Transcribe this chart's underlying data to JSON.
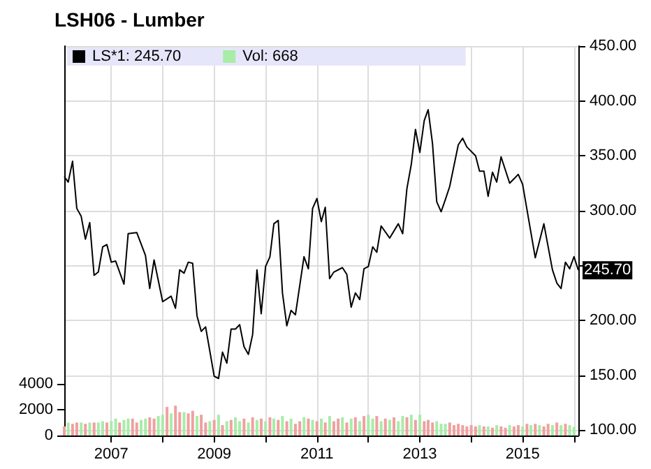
{
  "chart_data": {
    "type": "line",
    "title": "LSH06 - Lumber",
    "xlim": [
      "2006-02",
      "2016-02"
    ],
    "xticks": [
      {
        "value": "2007",
        "label": "2007"
      },
      {
        "value": "2008",
        "label": null
      },
      {
        "value": "2009",
        "label": "2009"
      },
      {
        "value": "2010",
        "label": null
      },
      {
        "value": "2011",
        "label": "2011"
      },
      {
        "value": "2012",
        "label": null
      },
      {
        "value": "2013",
        "label": "2013"
      },
      {
        "value": "2014",
        "label": null
      },
      {
        "value": "2015",
        "label": "2015"
      },
      {
        "value": "2016",
        "label": null
      }
    ],
    "ylim": [
      95,
      450
    ],
    "yticks": [
      {
        "value": 100,
        "label": "100.00"
      },
      {
        "value": 150,
        "label": "150.00"
      },
      {
        "value": 200,
        "label": "200.00"
      },
      {
        "value": 250,
        "label": null
      },
      {
        "value": 300,
        "label": "300.00"
      },
      {
        "value": 350,
        "label": "350.00"
      },
      {
        "value": 400,
        "label": "400.00"
      },
      {
        "value": 450,
        "label": "450.00"
      }
    ],
    "y2lim": [
      0,
      30000
    ],
    "y2ticks": [
      0,
      2000,
      4000
    ],
    "grid": true,
    "legend": "top left",
    "marker": "none",
    "annotations": [
      {
        "text": "245.70",
        "x": "2016-02",
        "y": 245.7
      }
    ],
    "series": [
      {
        "name": "LS*1: 245.70",
        "color": "#000000",
        "x": [
          "2006-02",
          "2006-03",
          "2006-04",
          "2006-05",
          "2006-06",
          "2006-07",
          "2006-08",
          "2006-09",
          "2006-10",
          "2006-11",
          "2006-12",
          "2007-01",
          "2007-02",
          "2007-04",
          "2007-05",
          "2007-07",
          "2007-09",
          "2007-10",
          "2007-11",
          "2008-01",
          "2008-03",
          "2008-04",
          "2008-05",
          "2008-06",
          "2008-07",
          "2008-08",
          "2008-09",
          "2008-10",
          "2008-11",
          "2008-12",
          "2009-01",
          "2009-02",
          "2009-03",
          "2009-04",
          "2009-05",
          "2009-06",
          "2009-07",
          "2009-08",
          "2009-09",
          "2009-10",
          "2009-11",
          "2009-12",
          "2010-01",
          "2010-02",
          "2010-03",
          "2010-04",
          "2010-05",
          "2010-06",
          "2010-07",
          "2010-08",
          "2010-10",
          "2010-11",
          "2010-12",
          "2011-01",
          "2011-02",
          "2011-03",
          "2011-04",
          "2011-05",
          "2011-07",
          "2011-08",
          "2011-09",
          "2011-10",
          "2011-11",
          "2011-12",
          "2012-01",
          "2012-02",
          "2012-03",
          "2012-04",
          "2012-06",
          "2012-08",
          "2012-09",
          "2012-10",
          "2012-11",
          "2012-12",
          "2013-01",
          "2013-02",
          "2013-03",
          "2013-04",
          "2013-05",
          "2013-06",
          "2013-07",
          "2013-08",
          "2013-10",
          "2013-11",
          "2013-12",
          "2014-02",
          "2014-03",
          "2014-04",
          "2014-05",
          "2014-06",
          "2014-07",
          "2014-08",
          "2014-10",
          "2014-12",
          "2015-01",
          "2015-04",
          "2015-06",
          "2015-08",
          "2015-09",
          "2015-10",
          "2015-11",
          "2015-12",
          "2016-01",
          "2016-02"
        ],
        "values": [
          331,
          326,
          345,
          302,
          295,
          274,
          289,
          241,
          244,
          267,
          269,
          253,
          254,
          233,
          279,
          280,
          259,
          229,
          255,
          217,
          222,
          211,
          246,
          243,
          253,
          252,
          204,
          190,
          194,
          172,
          149,
          147,
          171,
          161,
          192,
          192,
          196,
          176,
          169,
          187,
          246,
          206,
          249,
          258,
          288,
          291,
          225,
          195,
          209,
          205,
          258,
          247,
          302,
          311,
          290,
          303,
          238,
          244,
          248,
          242,
          212,
          225,
          219,
          247,
          249,
          267,
          262,
          286,
          275,
          288,
          279,
          320,
          342,
          374,
          353,
          382,
          392,
          361,
          308,
          299,
          310,
          322,
          360,
          366,
          358,
          350,
          336,
          336,
          313,
          335,
          326,
          349,
          325,
          333,
          324,
          257,
          288,
          246,
          234,
          229,
          253,
          247,
          258,
          245.7
        ]
      },
      {
        "name": "Vol: 668",
        "type": "bar",
        "axis": "y2",
        "color": "#a8eca8",
        "x": [
          "2006-02",
          "2006-03",
          "2006-04",
          "2006-05",
          "2006-06",
          "2006-07",
          "2006-08",
          "2006-09",
          "2006-10",
          "2006-11",
          "2006-12",
          "2007-01",
          "2007-02",
          "2007-03",
          "2007-04",
          "2007-05",
          "2007-06",
          "2007-07",
          "2007-08",
          "2007-09",
          "2007-10",
          "2007-11",
          "2007-12",
          "2008-01",
          "2008-02",
          "2008-03",
          "2008-04",
          "2008-05",
          "2008-06",
          "2008-07",
          "2008-08",
          "2008-09",
          "2008-10",
          "2008-11",
          "2008-12",
          "2009-01",
          "2009-02",
          "2009-03",
          "2009-04",
          "2009-05",
          "2009-06",
          "2009-07",
          "2009-08",
          "2009-09",
          "2009-10",
          "2009-11",
          "2009-12",
          "2010-01",
          "2010-02",
          "2010-03",
          "2010-04",
          "2010-05",
          "2010-06",
          "2010-07",
          "2010-08",
          "2010-09",
          "2010-10",
          "2010-11",
          "2010-12",
          "2011-01",
          "2011-02",
          "2011-03",
          "2011-04",
          "2011-05",
          "2011-06",
          "2011-07",
          "2011-08",
          "2011-09",
          "2011-10",
          "2011-11",
          "2011-12",
          "2012-01",
          "2012-02",
          "2012-03",
          "2012-04",
          "2012-05",
          "2012-06",
          "2012-07",
          "2012-08",
          "2012-09",
          "2012-10",
          "2012-11",
          "2012-12",
          "2013-01",
          "2013-02",
          "2013-03",
          "2013-04",
          "2013-05",
          "2013-06",
          "2013-07",
          "2013-08",
          "2013-09",
          "2013-10",
          "2013-11",
          "2013-12",
          "2014-01",
          "2014-02",
          "2014-03",
          "2014-04",
          "2014-05",
          "2014-06",
          "2014-07",
          "2014-08",
          "2014-09",
          "2014-10",
          "2014-11",
          "2014-12",
          "2015-01",
          "2015-02",
          "2015-03",
          "2015-04",
          "2015-05",
          "2015-06",
          "2015-07",
          "2015-08",
          "2015-09",
          "2015-10",
          "2015-11",
          "2015-12",
          "2016-01"
        ],
        "values": [
          700,
          1000,
          900,
          1000,
          1000,
          900,
          1000,
          1000,
          1000,
          1100,
          1000,
          1100,
          1300,
          1000,
          1200,
          1300,
          1300,
          1000,
          1200,
          1300,
          1400,
          1300,
          1500,
          1600,
          2200,
          1700,
          2300,
          1800,
          1800,
          1700,
          1900,
          1500,
          1600,
          1000,
          1100,
          1200,
          1600,
          800,
          1100,
          1200,
          1400,
          1100,
          1300,
          1000,
          1400,
          1200,
          1300,
          1100,
          1400,
          1300,
          1200,
          1500,
          1100,
          1300,
          900,
          1100,
          1400,
          1300,
          1200,
          1100,
          1300,
          1000,
          1500,
          1100,
          1300,
          1400,
          1000,
          1300,
          1400,
          1100,
          1500,
          1600,
          1300,
          1500,
          1100,
          1300,
          1200,
          1400,
          1100,
          1500,
          1400,
          1600,
          1200,
          1600,
          1100,
          1200,
          1000,
          1100,
          900,
          900,
          1000,
          800,
          900,
          800,
          700,
          800,
          700,
          800,
          700,
          700,
          600,
          800,
          700,
          600,
          800,
          700,
          800,
          700,
          900,
          800,
          900,
          800,
          700,
          900,
          800,
          1000,
          800,
          900,
          800,
          668
        ],
        "colors": [
          "#f0a0a0",
          "#a8eca8",
          "#f0a0a0",
          "#f0a0a0",
          "#a8eca8",
          "#f0a0a0",
          "#a8eca8",
          "#f0a0a0",
          "#a8eca8",
          "#a8eca8",
          "#f0a0a0",
          "#a8eca8",
          "#a8eca8",
          "#f0a0a0",
          "#a8eca8",
          "#a8eca8",
          "#f0a0a0",
          "#f0a0a0",
          "#a8eca8",
          "#a8eca8",
          "#f0a0a0",
          "#f0a0a0",
          "#a8eca8",
          "#a8eca8",
          "#f0a0a0",
          "#a8eca8",
          "#f0a0a0",
          "#f0a0a0",
          "#a8eca8",
          "#f0a0a0",
          "#f0a0a0",
          "#a8eca8",
          "#f0a0a0",
          "#f0a0a0",
          "#a8eca8",
          "#f0a0a0",
          "#a8eca8",
          "#f0a0a0",
          "#a8eca8",
          "#f0a0a0",
          "#a8eca8",
          "#a8eca8",
          "#f0a0a0",
          "#a8eca8",
          "#f0a0a0",
          "#a8eca8",
          "#f0a0a0",
          "#a8eca8",
          "#f0a0a0",
          "#a8eca8",
          "#f0a0a0",
          "#a8eca8",
          "#f0a0a0",
          "#a8eca8",
          "#f0a0a0",
          "#f0a0a0",
          "#a8eca8",
          "#f0a0a0",
          "#a8eca8",
          "#f0a0a0",
          "#a8eca8",
          "#f0a0a0",
          "#a8eca8",
          "#f0a0a0",
          "#f0a0a0",
          "#a8eca8",
          "#f0a0a0",
          "#a8eca8",
          "#f0a0a0",
          "#a8eca8",
          "#f0a0a0",
          "#a8eca8",
          "#a8eca8",
          "#f0a0a0",
          "#a8eca8",
          "#f0a0a0",
          "#a8eca8",
          "#f0a0a0",
          "#a8eca8",
          "#a8eca8",
          "#f0a0a0",
          "#a8eca8",
          "#f0a0a0",
          "#a8eca8",
          "#f0a0a0",
          "#f0a0a0",
          "#f0a0a0",
          "#a8eca8",
          "#a8eca8",
          "#a8eca8",
          "#f0a0a0",
          "#f0a0a0",
          "#f0a0a0",
          "#f0a0a0",
          "#f0a0a0",
          "#f0a0a0",
          "#f0a0a0",
          "#a8eca8",
          "#f0a0a0",
          "#a8eca8",
          "#f0a0a0",
          "#a8eca8",
          "#f0a0a0",
          "#f0a0a0",
          "#a8eca8",
          "#f0a0a0",
          "#f0a0a0",
          "#a8eca8",
          "#f0a0a0",
          "#a8eca8",
          "#f0a0a0",
          "#a8eca8",
          "#f0a0a0",
          "#f0a0a0",
          "#a8eca8",
          "#f0a0a0",
          "#a8eca8",
          "#f0a0a0",
          "#a8eca8",
          "#a8eca8"
        ]
      }
    ]
  }
}
